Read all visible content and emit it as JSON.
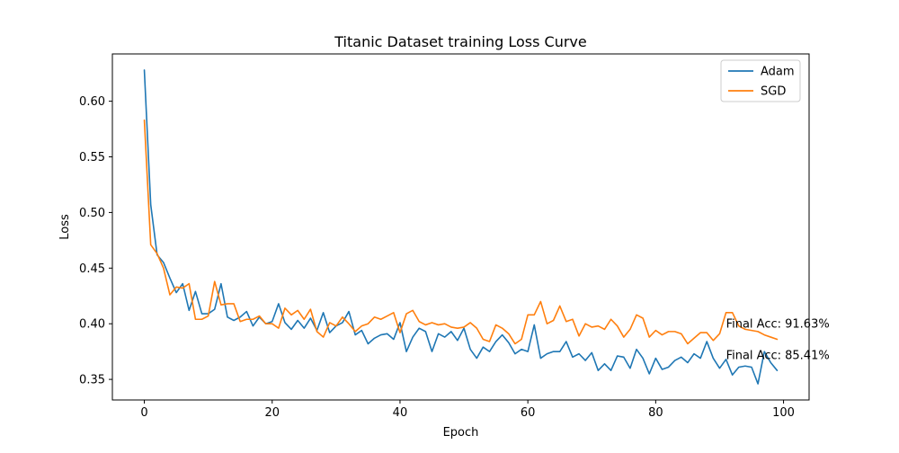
{
  "chart_data": {
    "type": "line",
    "title": "Titanic Dataset training Loss Curve",
    "xlabel": "Epoch",
    "ylabel": "Loss",
    "xlim": [
      -5,
      104
    ],
    "ylim": [
      0.3315,
      0.6425
    ],
    "xticks": [
      0,
      20,
      40,
      60,
      80,
      100
    ],
    "yticks": [
      0.35,
      0.4,
      0.45,
      0.5,
      0.55,
      0.6
    ],
    "xtick_labels": [
      "0",
      "20",
      "40",
      "60",
      "80",
      "100"
    ],
    "ytick_labels": [
      "0.35",
      "0.40",
      "0.45",
      "0.50",
      "0.55",
      "0.60"
    ],
    "grid": false,
    "legend_position": "top-right",
    "series": [
      {
        "name": "Adam",
        "color": "#1f77b4",
        "x": [
          0,
          1,
          2,
          3,
          4,
          5,
          6,
          7,
          8,
          9,
          10,
          11,
          12,
          13,
          14,
          15,
          16,
          17,
          18,
          19,
          20,
          21,
          22,
          23,
          24,
          25,
          26,
          27,
          28,
          29,
          30,
          31,
          32,
          33,
          34,
          35,
          36,
          37,
          38,
          39,
          40,
          41,
          42,
          43,
          44,
          45,
          46,
          47,
          48,
          49,
          50,
          51,
          52,
          53,
          54,
          55,
          56,
          57,
          58,
          59,
          60,
          61,
          62,
          63,
          64,
          65,
          66,
          67,
          68,
          69,
          70,
          71,
          72,
          73,
          74,
          75,
          76,
          77,
          78,
          79,
          80,
          81,
          82,
          83,
          84,
          85,
          86,
          87,
          88,
          89,
          90,
          91,
          92,
          93,
          94,
          95,
          96,
          97,
          98,
          99
        ],
        "values": [
          0.628,
          0.507,
          0.462,
          0.455,
          0.441,
          0.428,
          0.436,
          0.412,
          0.429,
          0.409,
          0.409,
          0.413,
          0.436,
          0.406,
          0.403,
          0.406,
          0.411,
          0.398,
          0.406,
          0.4,
          0.402,
          0.418,
          0.401,
          0.395,
          0.403,
          0.396,
          0.405,
          0.394,
          0.41,
          0.392,
          0.398,
          0.401,
          0.411,
          0.39,
          0.394,
          0.382,
          0.387,
          0.39,
          0.391,
          0.386,
          0.401,
          0.375,
          0.388,
          0.396,
          0.393,
          0.375,
          0.391,
          0.388,
          0.393,
          0.385,
          0.396,
          0.377,
          0.369,
          0.379,
          0.375,
          0.384,
          0.39,
          0.383,
          0.373,
          0.377,
          0.375,
          0.399,
          0.369,
          0.373,
          0.375,
          0.375,
          0.384,
          0.37,
          0.373,
          0.367,
          0.374,
          0.358,
          0.364,
          0.358,
          0.371,
          0.37,
          0.36,
          0.377,
          0.369,
          0.355,
          0.369,
          0.359,
          0.361,
          0.367,
          0.37,
          0.365,
          0.373,
          0.369,
          0.384,
          0.369,
          0.36,
          0.368,
          0.354,
          0.361,
          0.362,
          0.361,
          0.346,
          0.375,
          0.365,
          0.358
        ]
      },
      {
        "name": "SGD",
        "color": "#ff7f0e",
        "x": [
          0,
          1,
          2,
          3,
          4,
          5,
          6,
          7,
          8,
          9,
          10,
          11,
          12,
          13,
          14,
          15,
          16,
          17,
          18,
          19,
          20,
          21,
          22,
          23,
          24,
          25,
          26,
          27,
          28,
          29,
          30,
          31,
          32,
          33,
          34,
          35,
          36,
          37,
          38,
          39,
          40,
          41,
          42,
          43,
          44,
          45,
          46,
          47,
          48,
          49,
          50,
          51,
          52,
          53,
          54,
          55,
          56,
          57,
          58,
          59,
          60,
          61,
          62,
          63,
          64,
          65,
          66,
          67,
          68,
          69,
          70,
          71,
          72,
          73,
          74,
          75,
          76,
          77,
          78,
          79,
          80,
          81,
          82,
          83,
          84,
          85,
          86,
          87,
          88,
          89,
          90,
          91,
          92,
          93,
          94,
          95,
          96,
          97,
          98,
          99
        ],
        "values": [
          0.583,
          0.471,
          0.463,
          0.45,
          0.426,
          0.433,
          0.432,
          0.436,
          0.404,
          0.404,
          0.407,
          0.438,
          0.417,
          0.418,
          0.418,
          0.402,
          0.404,
          0.404,
          0.407,
          0.4,
          0.4,
          0.396,
          0.414,
          0.408,
          0.412,
          0.404,
          0.413,
          0.393,
          0.388,
          0.401,
          0.398,
          0.406,
          0.4,
          0.393,
          0.398,
          0.4,
          0.406,
          0.404,
          0.407,
          0.41,
          0.392,
          0.409,
          0.412,
          0.402,
          0.399,
          0.401,
          0.399,
          0.4,
          0.397,
          0.396,
          0.397,
          0.401,
          0.396,
          0.386,
          0.384,
          0.399,
          0.396,
          0.391,
          0.382,
          0.386,
          0.408,
          0.408,
          0.42,
          0.4,
          0.403,
          0.416,
          0.402,
          0.404,
          0.389,
          0.4,
          0.397,
          0.398,
          0.395,
          0.404,
          0.398,
          0.388,
          0.395,
          0.408,
          0.405,
          0.388,
          0.394,
          0.39,
          0.393,
          0.393,
          0.391,
          0.382,
          0.387,
          0.392,
          0.392,
          0.385,
          0.391,
          0.41,
          0.41,
          0.398,
          0.395,
          0.394,
          0.393,
          0.39,
          0.388,
          0.386
        ]
      }
    ],
    "annotations": [
      {
        "text": "Final Acc: 91.63%",
        "x": 91,
        "y": 0.4
      },
      {
        "text": "Final Acc: 85.41%",
        "x": 91,
        "y": 0.372
      }
    ]
  }
}
